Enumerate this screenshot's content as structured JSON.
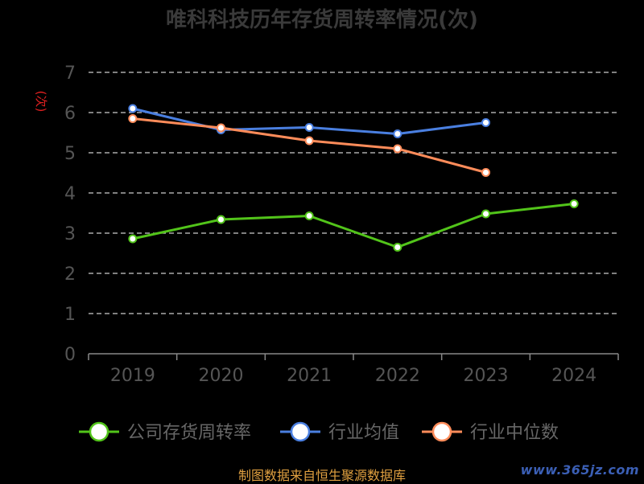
{
  "chart_data": {
    "type": "line",
    "title": "唯科科技历年存货周转率情况(次)",
    "ylabel": "(次)",
    "categories": [
      "2019",
      "2020",
      "2021",
      "2022",
      "2023",
      "2024"
    ],
    "ylim": [
      0,
      7
    ],
    "yticks": [
      0,
      1,
      2,
      3,
      4,
      5,
      6,
      7
    ],
    "grid": true,
    "legend_position": "bottom",
    "series": [
      {
        "name": "公司存货周转率",
        "color": "#52c41a",
        "values": [
          2.86,
          3.34,
          3.43,
          2.65,
          3.48,
          3.73
        ]
      },
      {
        "name": "行业均值",
        "color": "#4a7fe0",
        "values": [
          6.1,
          5.57,
          5.63,
          5.47,
          5.75,
          null
        ]
      },
      {
        "name": "行业中位数",
        "color": "#ff8c5a",
        "values": [
          5.85,
          5.62,
          5.3,
          5.1,
          4.51,
          null
        ]
      }
    ]
  },
  "source_note": "制图数据来自恒生聚源数据库",
  "watermark": "www.365jz.com",
  "colors": {
    "grid": "#cccccc",
    "axis": "#888888",
    "tick_label": "#555555",
    "ylabel": "#e02020"
  }
}
